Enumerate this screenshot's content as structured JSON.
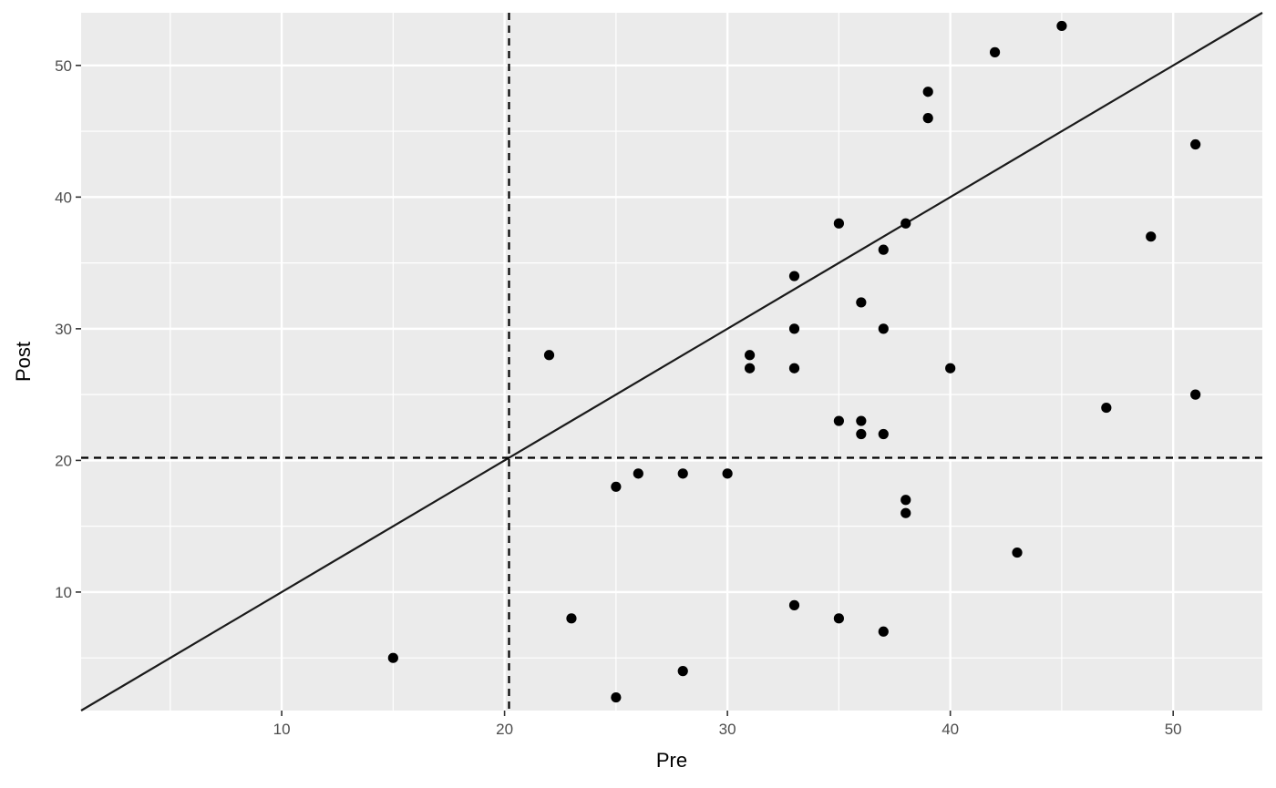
{
  "chart_data": {
    "type": "scatter",
    "title": "",
    "xlabel": "Pre",
    "ylabel": "Post",
    "xlim": [
      1,
      54
    ],
    "ylim": [
      1,
      54
    ],
    "x_ticks": [
      10,
      20,
      30,
      40,
      50
    ],
    "y_ticks": [
      10,
      20,
      30,
      40,
      50
    ],
    "x_tick_labels": [
      "10",
      "20",
      "30",
      "40",
      "50"
    ],
    "y_tick_labels": [
      "10",
      "20",
      "30",
      "40",
      "50"
    ],
    "grid": true,
    "reference_lines": {
      "identity_line": {
        "slope": 1,
        "intercept": 0
      },
      "vertical_dashed_x": 20.2,
      "horizontal_dashed_y": 20.2
    },
    "points": [
      {
        "x": 15,
        "y": 5
      },
      {
        "x": 22,
        "y": 28
      },
      {
        "x": 23,
        "y": 8
      },
      {
        "x": 25,
        "y": 18
      },
      {
        "x": 25,
        "y": 2
      },
      {
        "x": 26,
        "y": 19
      },
      {
        "x": 28,
        "y": 19
      },
      {
        "x": 28,
        "y": 4
      },
      {
        "x": 30,
        "y": 19
      },
      {
        "x": 31,
        "y": 28
      },
      {
        "x": 31,
        "y": 27
      },
      {
        "x": 33,
        "y": 34
      },
      {
        "x": 33,
        "y": 30
      },
      {
        "x": 33,
        "y": 27
      },
      {
        "x": 33,
        "y": 9
      },
      {
        "x": 35,
        "y": 38
      },
      {
        "x": 35,
        "y": 23
      },
      {
        "x": 35,
        "y": 8
      },
      {
        "x": 36,
        "y": 32
      },
      {
        "x": 36,
        "y": 23
      },
      {
        "x": 36,
        "y": 22
      },
      {
        "x": 37,
        "y": 36
      },
      {
        "x": 37,
        "y": 30
      },
      {
        "x": 37,
        "y": 22
      },
      {
        "x": 37,
        "y": 7
      },
      {
        "x": 38,
        "y": 38
      },
      {
        "x": 38,
        "y": 17
      },
      {
        "x": 38,
        "y": 16
      },
      {
        "x": 39,
        "y": 48
      },
      {
        "x": 39,
        "y": 46
      },
      {
        "x": 40,
        "y": 27
      },
      {
        "x": 42,
        "y": 51
      },
      {
        "x": 43,
        "y": 13
      },
      {
        "x": 45,
        "y": 53
      },
      {
        "x": 47,
        "y": 24
      },
      {
        "x": 49,
        "y": 37
      },
      {
        "x": 51,
        "y": 44
      },
      {
        "x": 51,
        "y": 25
      }
    ],
    "colors": {
      "panel_background": "#ebebeb",
      "grid": "#ffffff",
      "points": "#000000",
      "lines": "#1a1a1a",
      "tick_labels": "#4d4d4d"
    }
  }
}
